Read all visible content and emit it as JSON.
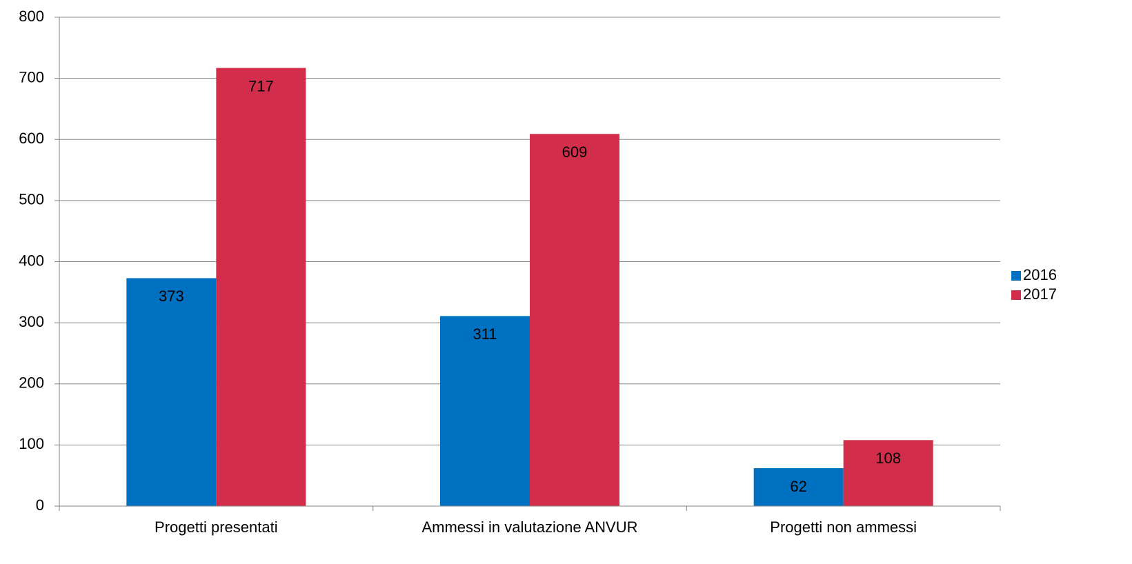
{
  "chart_data": {
    "type": "bar",
    "categories": [
      "Progetti presentati",
      "Ammessi in valutazione ANVUR",
      "Progetti non ammessi"
    ],
    "series": [
      {
        "name": "2016",
        "values": [
          373,
          311,
          62
        ],
        "color": "#0070C0"
      },
      {
        "name": "2017",
        "values": [
          717,
          609,
          108
        ],
        "color": "#D22E4B"
      }
    ],
    "ylim": [
      0,
      800
    ],
    "yticks": [
      0,
      100,
      200,
      300,
      400,
      500,
      600,
      700,
      800
    ],
    "grid": true,
    "legend": "right",
    "data_labels": true,
    "title": "",
    "xlabel": "",
    "ylabel": ""
  }
}
